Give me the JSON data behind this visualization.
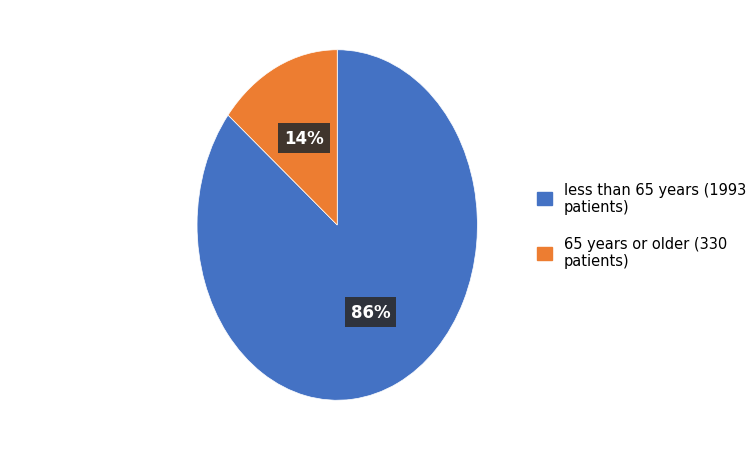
{
  "slices": [
    1993,
    330
  ],
  "labels": [
    "less than 65 years (1993\npatients)",
    "65 years or older (330\npatients)"
  ],
  "colors": [
    "#4472C4",
    "#ED7D31"
  ],
  "autopct_labels": [
    "86%",
    "14%"
  ],
  "background_color": "#ffffff",
  "legend_fontsize": 10.5,
  "autopct_fontsize": 12,
  "startangle": 90,
  "shadow_color": "#c0c0c0",
  "label_bg_color": "#2d2d2d"
}
